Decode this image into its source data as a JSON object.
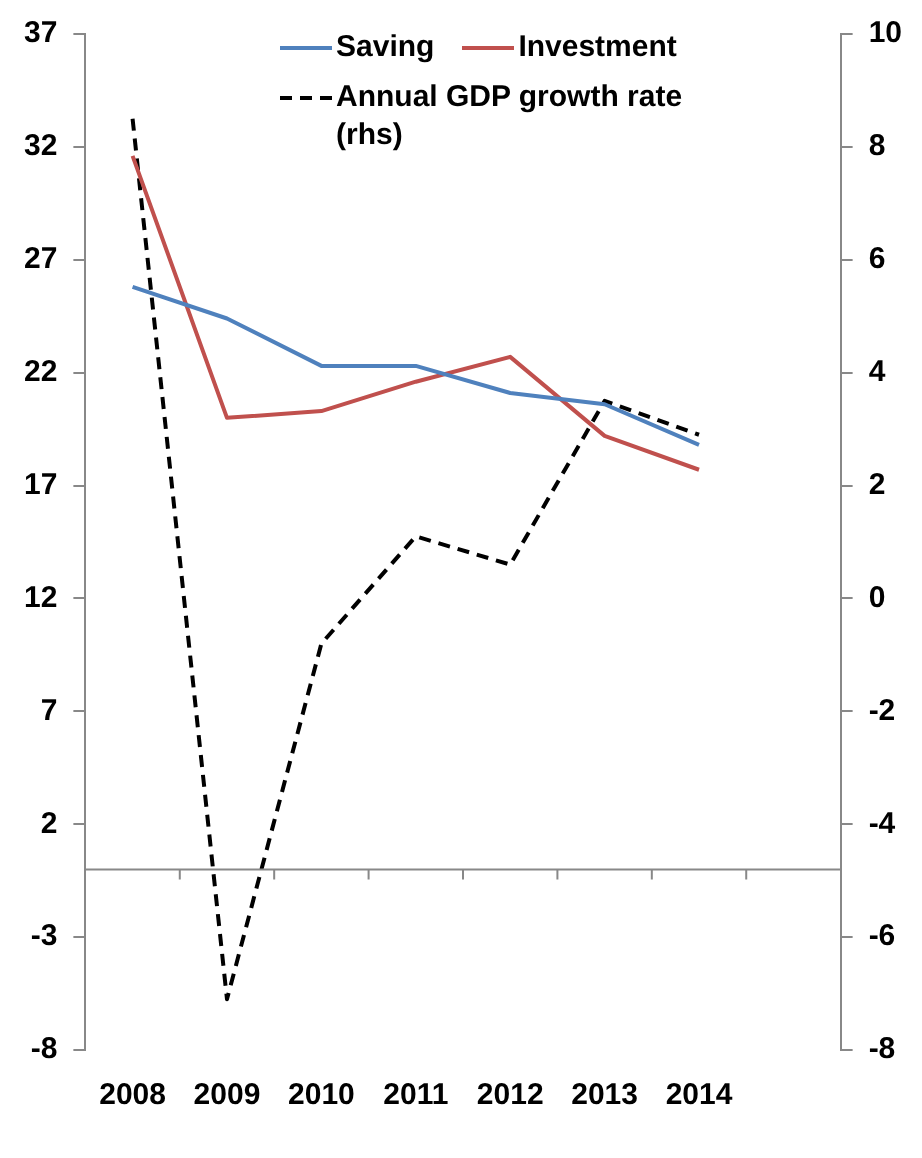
{
  "chart_data": {
    "type": "line",
    "categories": [
      "2008",
      "2009",
      "2010",
      "2011",
      "2012",
      "2013",
      "2014",
      null
    ],
    "series": [
      {
        "name": "Saving",
        "color": "#4f81bd",
        "values": [
          25.8,
          24.4,
          22.3,
          22.3,
          21.1,
          20.6,
          18.8,
          null
        ]
      },
      {
        "name": "Investment",
        "color": "#c0504d",
        "values": [
          31.6,
          20.0,
          20.3,
          21.6,
          22.7,
          19.2,
          17.7,
          null
        ]
      },
      {
        "name": "Annual GDP growth rate (rhs)",
        "color": "#000000",
        "axis": "y2",
        "line_style": "dashed",
        "values": [
          8.5,
          -7.1,
          -0.8,
          1.1,
          0.6,
          3.5,
          2.9,
          null
        ]
      }
    ],
    "ylim": [
      -8,
      37
    ],
    "yticks": [
      -8,
      -3,
      2,
      7,
      12,
      17,
      22,
      27,
      32,
      37
    ],
    "y2lim": [
      -8,
      10
    ],
    "y2ticks": [
      -8,
      -6,
      -4,
      -2,
      0,
      2,
      4,
      6,
      8,
      10
    ],
    "grid": false,
    "legend": "top",
    "marker": "none",
    "line_style": "solid"
  }
}
